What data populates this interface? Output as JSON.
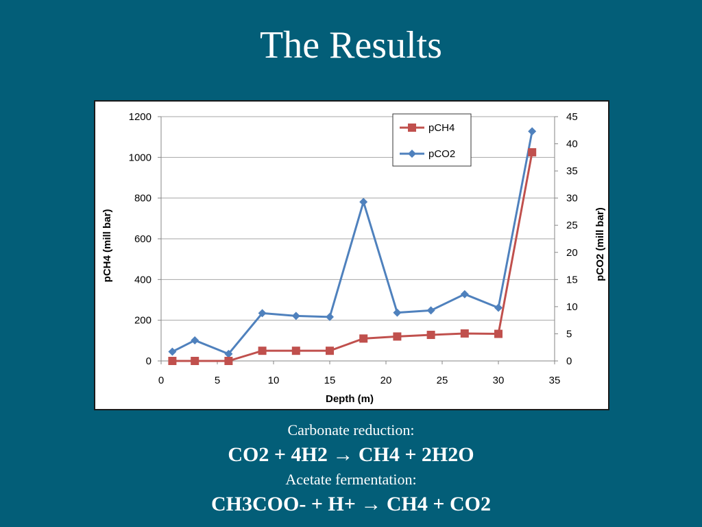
{
  "slide": {
    "title": "The Results",
    "captions": [
      {
        "text": "Carbonate reduction:",
        "style": "small"
      },
      {
        "text": "CO2 + 4H2 → CH4 + 2H2O",
        "style": "big"
      },
      {
        "text": "Acetate fermentation:",
        "style": "small"
      },
      {
        "text": "CH3COO- + H+ → CH4 + CO2",
        "style": "big"
      }
    ]
  },
  "colors": {
    "background": "#035e78",
    "pch4": "#c0504d",
    "pco2": "#4f81bd",
    "grid": "#a6a6a6"
  },
  "chart_data": {
    "type": "line",
    "xlabel": "Depth (m)",
    "ylabel": "pCH4 (mill bar)",
    "y2label": "pCO2 (mill bar)",
    "xlim": [
      0,
      35
    ],
    "xticks": [
      0,
      5,
      10,
      15,
      20,
      25,
      30,
      35
    ],
    "ylim": [
      0,
      1200
    ],
    "yticks": [
      0,
      200,
      400,
      600,
      800,
      1000,
      1200
    ],
    "y2lim": [
      0,
      45
    ],
    "y2ticks": [
      0,
      5,
      10,
      15,
      20,
      25,
      30,
      35,
      40,
      45
    ],
    "grid": "horizontal",
    "legend_position": "top-right",
    "series": [
      {
        "name": "pCH4",
        "axis": "left",
        "marker": "square",
        "color": "#c0504d",
        "x": [
          1,
          3,
          6,
          9,
          12,
          15,
          18,
          21,
          24,
          27,
          30,
          33
        ],
        "y": [
          0,
          0,
          0,
          50,
          50,
          50,
          110,
          120,
          128,
          135,
          133,
          1025
        ]
      },
      {
        "name": "pCO2",
        "axis": "right",
        "marker": "diamond",
        "color": "#4f81bd",
        "x": [
          1,
          3,
          6,
          9,
          12,
          15,
          18,
          21,
          24,
          27,
          30,
          33
        ],
        "y": [
          1.7,
          3.8,
          1.3,
          8.8,
          8.3,
          8.1,
          29.3,
          8.9,
          9.3,
          12.3,
          9.8,
          42.3
        ]
      }
    ]
  }
}
